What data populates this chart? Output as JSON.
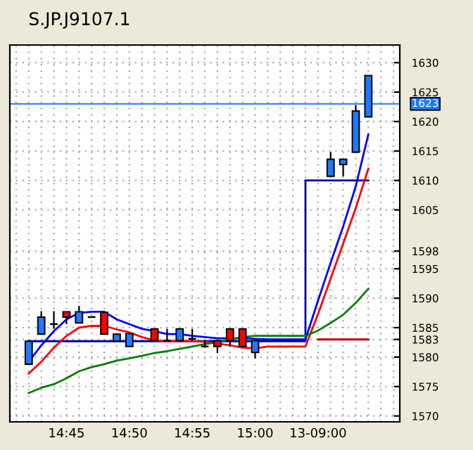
{
  "chart_data": {
    "type": "candlestick",
    "title": "S.JP.J9107.1",
    "categories": [
      null,
      null,
      null,
      null,
      "14:45",
      null,
      null,
      null,
      null,
      "14:50",
      null,
      null,
      null,
      null,
      "14:55",
      null,
      null,
      null,
      null,
      "15:00",
      null,
      null,
      null,
      null,
      "13-09:00",
      null,
      null,
      null,
      null,
      null,
      null
    ],
    "ohlc": [
      null,
      [
        1578.8,
        1582.7,
        1578.8,
        1582.7
      ],
      [
        1583.9,
        1587.8,
        1583.9,
        1586.8
      ],
      [
        1585.6,
        1587.8,
        1584.8,
        1585.6
      ],
      [
        1587.7,
        1587.7,
        1585.6,
        1586.8
      ],
      [
        1585.8,
        1588.7,
        1585.8,
        1587.7
      ],
      [
        1586.8,
        1586.8,
        1586.8,
        1586.8
      ],
      [
        1587.6,
        1587.6,
        1583.9,
        1583.9
      ],
      [
        1582.7,
        1583.9,
        1582.7,
        1583.9
      ],
      [
        1581.8,
        1584.0,
        1581.8,
        1584.0
      ],
      null,
      [
        1584.8,
        1584.8,
        1582.8,
        1582.8
      ],
      [
        1582.8,
        1584.8,
        1582.8,
        1582.8
      ],
      [
        1582.8,
        1584.8,
        1582.8,
        1584.8
      ],
      [
        1583.1,
        1584.8,
        1582.8,
        1583.1
      ],
      [
        1581.8,
        1582.8,
        1581.6,
        1581.8
      ],
      [
        1582.8,
        1582.8,
        1580.7,
        1581.8
      ],
      [
        1584.8,
        1584.8,
        1581.8,
        1582.8
      ],
      [
        1584.8,
        1584.8,
        1581.8,
        1581.8
      ],
      [
        1580.8,
        1582.8,
        1579.8,
        1582.8
      ],
      null,
      null,
      null,
      null,
      null,
      [
        1610.7,
        1614.8,
        1610.7,
        1613.6
      ],
      [
        1612.7,
        1613.6,
        1610.7,
        1613.6
      ],
      [
        1614.8,
        1622.8,
        1614.8,
        1621.8
      ],
      [
        1620.8,
        1627.8,
        1620.8,
        1627.8
      ],
      null,
      null
    ],
    "colors": [
      null,
      "#1e78ff",
      "#1e78ff",
      "#000000",
      "#ff0000",
      "#1e78ff",
      "#000000",
      "#ff0000",
      "#1e78ff",
      "#1e78ff",
      null,
      "#ff0000",
      "#000000",
      "#1e78ff",
      "#000000",
      "#000000",
      "#ff0000",
      "#ff0000",
      "#ff0000",
      "#1e78ff",
      null,
      null,
      null,
      null,
      null,
      "#1e78ff",
      "#1e78ff",
      "#1e78ff",
      "#1e78ff",
      null,
      null
    ],
    "series": [
      {
        "type": "line",
        "color": "#0000ff",
        "values": [
          null,
          1579.2,
          1582.0,
          1584.4,
          1586.4,
          1587.5,
          1587.7,
          1587.7,
          1586.4,
          1585.6,
          1584.8,
          1584.4,
          1583.9,
          1583.9,
          1583.6,
          1583.4,
          1583.2,
          1583.2,
          1583.2,
          1583.1,
          1583.0,
          1583.0,
          1583.0,
          1583.0,
          1589.6,
          1596.0,
          1602.2,
          1609.0,
          1617.8,
          null,
          null
        ]
      },
      {
        "type": "line",
        "color": "#ff0000",
        "values": [
          null,
          1577.2,
          1579.2,
          1581.6,
          1583.6,
          1585.0,
          1585.3,
          1585.3,
          1584.7,
          1584.2,
          1583.4,
          1582.8,
          1582.7,
          1582.7,
          1582.7,
          1582.6,
          1582.3,
          1582.0,
          1581.6,
          1581.5,
          1581.8,
          1581.8,
          1581.8,
          1581.8,
          1587.3,
          1593.3,
          1599.3,
          1605.3,
          1612.0,
          null,
          null
        ]
      },
      {
        "type": "line",
        "color": "#008000",
        "values": [
          null,
          1573.9,
          1574.8,
          1575.4,
          1576.4,
          1577.6,
          1578.3,
          1578.8,
          1579.4,
          1579.8,
          1580.2,
          1580.7,
          1581.0,
          1581.4,
          1581.8,
          1582.2,
          1582.5,
          1583.0,
          1583.4,
          1583.6,
          1583.6,
          1583.6,
          1583.6,
          1583.6,
          1584.5,
          1585.8,
          1587.2,
          1589.2,
          1591.6,
          null,
          null
        ]
      },
      {
        "type": "step",
        "color": "#0000a8",
        "values": [
          null,
          1582.7,
          1582.7,
          1582.7,
          1582.7,
          1582.7,
          1582.7,
          1582.7,
          1582.7,
          1582.7,
          1582.7,
          1582.7,
          1582.7,
          1582.7,
          1582.7,
          1582.7,
          1582.7,
          1582.7,
          1582.7,
          1582.7,
          1582.7,
          1582.7,
          1582.7,
          1582.7,
          1610,
          1610,
          1610,
          1610,
          1610,
          null,
          null
        ]
      },
      {
        "type": "step",
        "color": "#c00000",
        "values": [
          null,
          null,
          null,
          null,
          null,
          null,
          null,
          null,
          null,
          null,
          null,
          null,
          null,
          null,
          null,
          null,
          null,
          null,
          null,
          null,
          null,
          null,
          null,
          null,
          1583,
          1583,
          1583,
          1583,
          1583,
          null,
          null
        ]
      }
    ],
    "ylim": [
      1569,
      1633
    ],
    "yticks": [
      1570,
      1575,
      1580,
      1583,
      1585,
      1590,
      1595,
      1598,
      1605,
      1610,
      1615,
      1620,
      1625,
      1630
    ],
    "ref_lines": [
      {
        "axis": "y",
        "value": 1623,
        "label": "1623",
        "color": "#1e78ff"
      }
    ],
    "grid": true
  }
}
